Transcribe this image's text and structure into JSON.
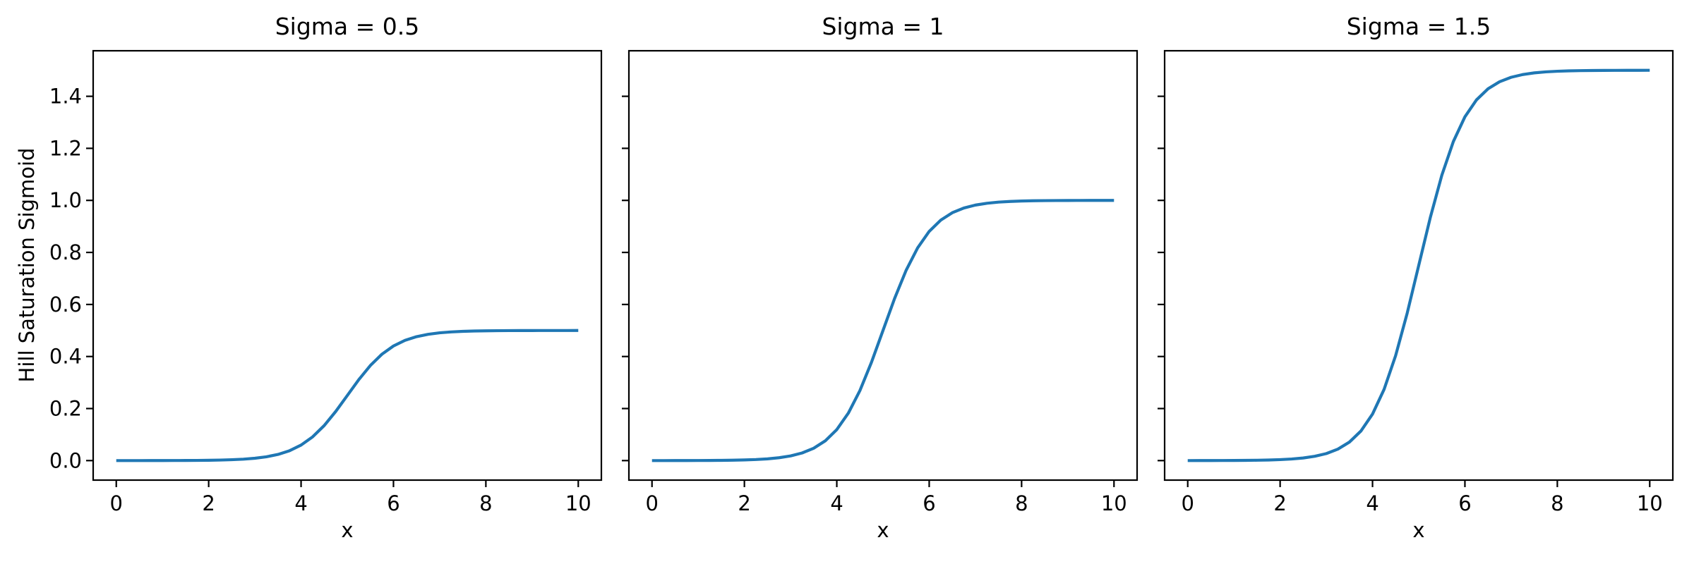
{
  "figure": {
    "background": "#ffffff",
    "text_color": "#000000",
    "line_color": "#1f77b4",
    "spine_color": "#000000",
    "ylabel": "Hill Saturation Sigmoid"
  },
  "chart_data": [
    {
      "type": "line",
      "title": "Sigma = 0.5",
      "sigma": 0.5,
      "xlabel": "x",
      "legend": "none",
      "grid": false,
      "xlim": [
        -0.5,
        10.5
      ],
      "ylim": [
        -0.075,
        1.575
      ],
      "xticks": [
        0,
        2,
        4,
        6,
        8,
        10
      ],
      "xtick_labels": [
        "0",
        "2",
        "4",
        "6",
        "8",
        "10"
      ],
      "yticks": [
        0,
        0.2,
        0.4,
        0.6,
        0.8,
        1.0,
        1.2,
        1.4
      ],
      "ytick_labels": [
        "0.0",
        "0.2",
        "0.4",
        "0.6",
        "0.8",
        "1.0",
        "1.2",
        "1.4"
      ],
      "x": [
        0,
        0.25,
        0.5,
        0.75,
        1,
        1.25,
        1.5,
        1.75,
        2,
        2.25,
        2.5,
        2.75,
        3,
        3.25,
        3.5,
        3.75,
        4,
        4.25,
        4.5,
        4.75,
        5,
        5.25,
        5.5,
        5.75,
        6,
        6.25,
        6.5,
        6.75,
        7,
        7.25,
        7.5,
        7.75,
        8,
        8.25,
        8.5,
        8.75,
        9,
        9.25,
        9.5,
        9.75,
        10
      ],
      "y": [
        2e-05,
        4e-05,
        6e-05,
        0.0001,
        0.00017,
        0.00028,
        0.00046,
        0.00075,
        0.00124,
        0.00203,
        0.00335,
        0.0055,
        0.00899,
        0.01466,
        0.02371,
        0.03793,
        0.0596,
        0.09121,
        0.13447,
        0.18877,
        0.25,
        0.31123,
        0.36553,
        0.40879,
        0.4404,
        0.46207,
        0.47629,
        0.48534,
        0.49101,
        0.49451,
        0.49665,
        0.49797,
        0.49876,
        0.49925,
        0.49954,
        0.49972,
        0.49983,
        0.4999,
        0.49994,
        0.49996,
        0.49998
      ]
    },
    {
      "type": "line",
      "title": "Sigma = 1",
      "sigma": 1,
      "xlabel": "x",
      "legend": "none",
      "grid": false,
      "xlim": [
        -0.5,
        10.5
      ],
      "ylim": [
        -0.075,
        1.575
      ],
      "xticks": [
        0,
        2,
        4,
        6,
        8,
        10
      ],
      "xtick_labels": [
        "0",
        "2",
        "4",
        "6",
        "8",
        "10"
      ],
      "yticks": [
        0,
        0.2,
        0.4,
        0.6,
        0.8,
        1.0,
        1.2,
        1.4
      ],
      "ytick_labels": [],
      "x": [
        0,
        0.25,
        0.5,
        0.75,
        1,
        1.25,
        1.5,
        1.75,
        2,
        2.25,
        2.5,
        2.75,
        3,
        3.25,
        3.5,
        3.75,
        4,
        4.25,
        4.5,
        4.75,
        5,
        5.25,
        5.5,
        5.75,
        6,
        6.25,
        6.5,
        6.75,
        7,
        7.25,
        7.5,
        7.75,
        8,
        8.25,
        8.5,
        8.75,
        9,
        9.25,
        9.5,
        9.75,
        10
      ],
      "y": [
        5e-05,
        7e-05,
        0.00012,
        0.0002,
        0.00034,
        0.00055,
        0.00091,
        0.0015,
        0.00247,
        0.00407,
        0.00669,
        0.011,
        0.01799,
        0.02931,
        0.04743,
        0.07586,
        0.1192,
        0.18243,
        0.26894,
        0.37754,
        0.5,
        0.62246,
        0.73106,
        0.81757,
        0.8808,
        0.92414,
        0.95257,
        0.97069,
        0.98201,
        0.98901,
        0.99331,
        0.99593,
        0.99753,
        0.9985,
        0.99909,
        0.99945,
        0.99967,
        0.9998,
        0.99988,
        0.99993,
        0.99995
      ]
    },
    {
      "type": "line",
      "title": "Sigma = 1.5",
      "sigma": 1.5,
      "xlabel": "x",
      "legend": "none",
      "grid": false,
      "xlim": [
        -0.5,
        10.5
      ],
      "ylim": [
        -0.075,
        1.575
      ],
      "xticks": [
        0,
        2,
        4,
        6,
        8,
        10
      ],
      "xtick_labels": [
        "0",
        "2",
        "4",
        "6",
        "8",
        "10"
      ],
      "yticks": [
        0,
        0.2,
        0.4,
        0.6,
        0.8,
        1.0,
        1.2,
        1.4
      ],
      "ytick_labels": [],
      "x": [
        0,
        0.25,
        0.5,
        0.75,
        1,
        1.25,
        1.5,
        1.75,
        2,
        2.25,
        2.5,
        2.75,
        3,
        3.25,
        3.5,
        3.75,
        4,
        4.25,
        4.5,
        4.75,
        5,
        5.25,
        5.5,
        5.75,
        6,
        6.25,
        6.5,
        6.75,
        7,
        7.25,
        7.5,
        7.75,
        8,
        8.25,
        8.5,
        8.75,
        9,
        9.25,
        9.5,
        9.75,
        10
      ],
      "y": [
        7e-05,
        0.00011,
        0.00019,
        0.0003,
        0.0005,
        0.00083,
        0.00137,
        0.00225,
        0.00371,
        0.00611,
        0.01004,
        0.0165,
        0.02698,
        0.04397,
        0.07114,
        0.11379,
        0.1788,
        0.27364,
        0.40341,
        0.56631,
        0.75,
        0.93369,
        1.09659,
        1.22636,
        1.3212,
        1.38621,
        1.42886,
        1.45603,
        1.47302,
        1.48352,
        1.48996,
        1.4939,
        1.49629,
        1.49775,
        1.49863,
        1.49917,
        1.4995,
        1.4997,
        1.49982,
        1.49989,
        1.49993
      ]
    }
  ]
}
